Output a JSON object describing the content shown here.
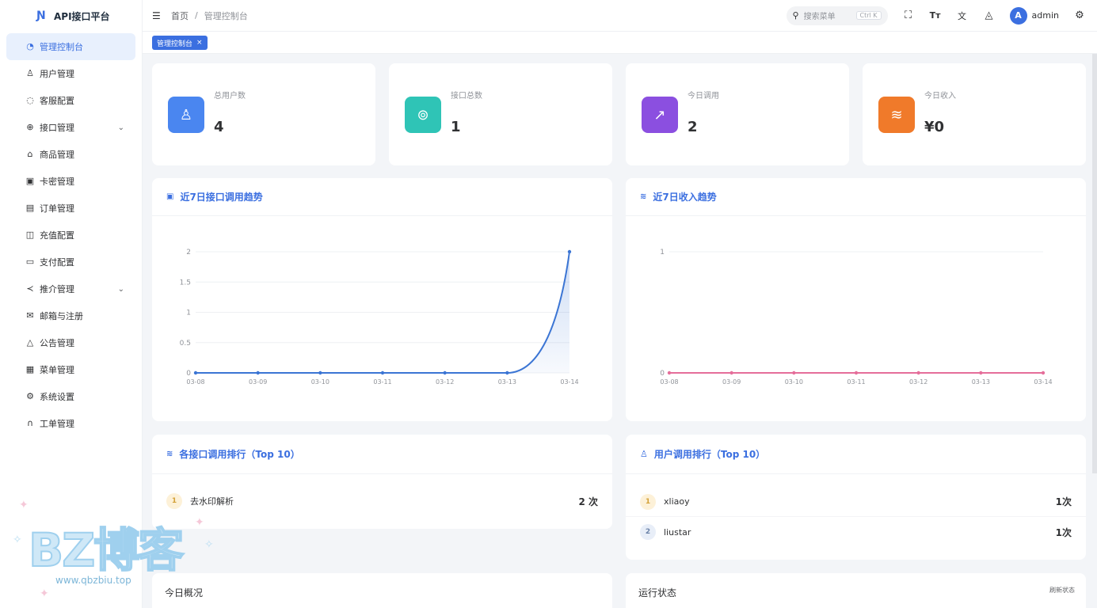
{
  "brand": {
    "title": "API接口平台",
    "logo_icon": "n-logo-icon"
  },
  "sidebar": {
    "items": [
      {
        "label": "管理控制台",
        "icon": "dashboard-icon",
        "glyph": "◔",
        "active": true,
        "chevron": false
      },
      {
        "label": "用户管理",
        "icon": "user-icon",
        "glyph": "♙",
        "active": false,
        "chevron": false
      },
      {
        "label": "客服配置",
        "icon": "chat-icon",
        "glyph": "◌",
        "active": false,
        "chevron": false
      },
      {
        "label": "接口管理",
        "icon": "link-icon",
        "glyph": "⊕",
        "active": false,
        "chevron": true
      },
      {
        "label": "商品管理",
        "icon": "shop-icon",
        "glyph": "⌂",
        "active": false,
        "chevron": false
      },
      {
        "label": "卡密管理",
        "icon": "card-icon",
        "glyph": "▣",
        "active": false,
        "chevron": false
      },
      {
        "label": "订单管理",
        "icon": "document-icon",
        "glyph": "▤",
        "active": false,
        "chevron": false
      },
      {
        "label": "充值配置",
        "icon": "recharge-icon",
        "glyph": "◫",
        "active": false,
        "chevron": false
      },
      {
        "label": "支付配置",
        "icon": "credit-card-icon",
        "glyph": "▭",
        "active": false,
        "chevron": false
      },
      {
        "label": "推介管理",
        "icon": "share-icon",
        "glyph": "≺",
        "active": false,
        "chevron": true
      },
      {
        "label": "邮箱与注册",
        "icon": "mail-icon",
        "glyph": "✉",
        "active": false,
        "chevron": false
      },
      {
        "label": "公告管理",
        "icon": "bell-icon",
        "glyph": "△",
        "active": false,
        "chevron": false
      },
      {
        "label": "菜单管理",
        "icon": "grid-icon",
        "glyph": "▦",
        "active": false,
        "chevron": false
      },
      {
        "label": "系统设置",
        "icon": "gear-icon",
        "glyph": "⚙",
        "active": false,
        "chevron": false
      },
      {
        "label": "工单管理",
        "icon": "headset-icon",
        "glyph": "∩",
        "active": false,
        "chevron": false
      }
    ]
  },
  "header": {
    "breadcrumb": [
      "首页",
      "管理控制台"
    ],
    "breadcrumb_sep": "/",
    "search_placeholder": "搜索菜单",
    "search_shortcut": "Ctrl K",
    "user_name": "admin",
    "avatar_letter": "A"
  },
  "tags": {
    "active_tag": "管理控制台",
    "close": "×"
  },
  "stats": [
    {
      "label": "总用户数",
      "value": "4",
      "icon": "user-icon",
      "glyph": "♙",
      "color": "#4a86f0"
    },
    {
      "label": "接口总数",
      "value": "1",
      "icon": "link-icon",
      "glyph": "⊚",
      "color": "#2fc4b6"
    },
    {
      "label": "今日调用",
      "value": "2",
      "icon": "trend-icon",
      "glyph": "↗",
      "color": "#8b4fe0"
    },
    {
      "label": "今日收入",
      "value": "¥0",
      "icon": "database-icon",
      "glyph": "≋",
      "color": "#f07a2a"
    }
  ],
  "charts": {
    "calls_title": "近7日接口调用趋势",
    "income_title": "近7日收入趋势"
  },
  "chart_data": [
    {
      "type": "line",
      "title": "近7日接口调用趋势",
      "categories": [
        "03-08",
        "03-09",
        "03-10",
        "03-11",
        "03-12",
        "03-13",
        "03-14"
      ],
      "series": [
        {
          "values": [
            0,
            0,
            0,
            0,
            0,
            0,
            2
          ]
        }
      ],
      "yticks": [
        "0",
        "0.5",
        "1",
        "1.5",
        "2"
      ],
      "ylim": [
        0,
        2
      ],
      "color": "#3b75d4",
      "area": true,
      "grid": true
    },
    {
      "type": "line",
      "title": "近7日收入趋势",
      "categories": [
        "03-08",
        "03-09",
        "03-10",
        "03-11",
        "03-12",
        "03-13",
        "03-14"
      ],
      "series": [
        {
          "values": [
            0,
            0,
            0,
            0,
            0,
            0,
            0
          ]
        }
      ],
      "yticks": [
        "0",
        "1"
      ],
      "ylim": [
        0,
        1
      ],
      "color": "#e56e9a",
      "area": false,
      "grid": true
    }
  ],
  "api_rank": {
    "title": "各接口调用排行（Top 10）",
    "rows": [
      {
        "rank": "1",
        "name": "去水印解析",
        "count": "2 次"
      }
    ]
  },
  "user_rank": {
    "title": "用户调用排行（Top 10）",
    "rows": [
      {
        "rank": "1",
        "name": "xliaoy",
        "count": "1次"
      },
      {
        "rank": "2",
        "name": "liustar",
        "count": "1次"
      }
    ]
  },
  "bottom": {
    "today_title": "今日概况",
    "status_title": "运行状态",
    "refresh_label": "刷新状态"
  },
  "watermark": {
    "title": "BZ博客",
    "url": "www.qbzbiu.top"
  }
}
